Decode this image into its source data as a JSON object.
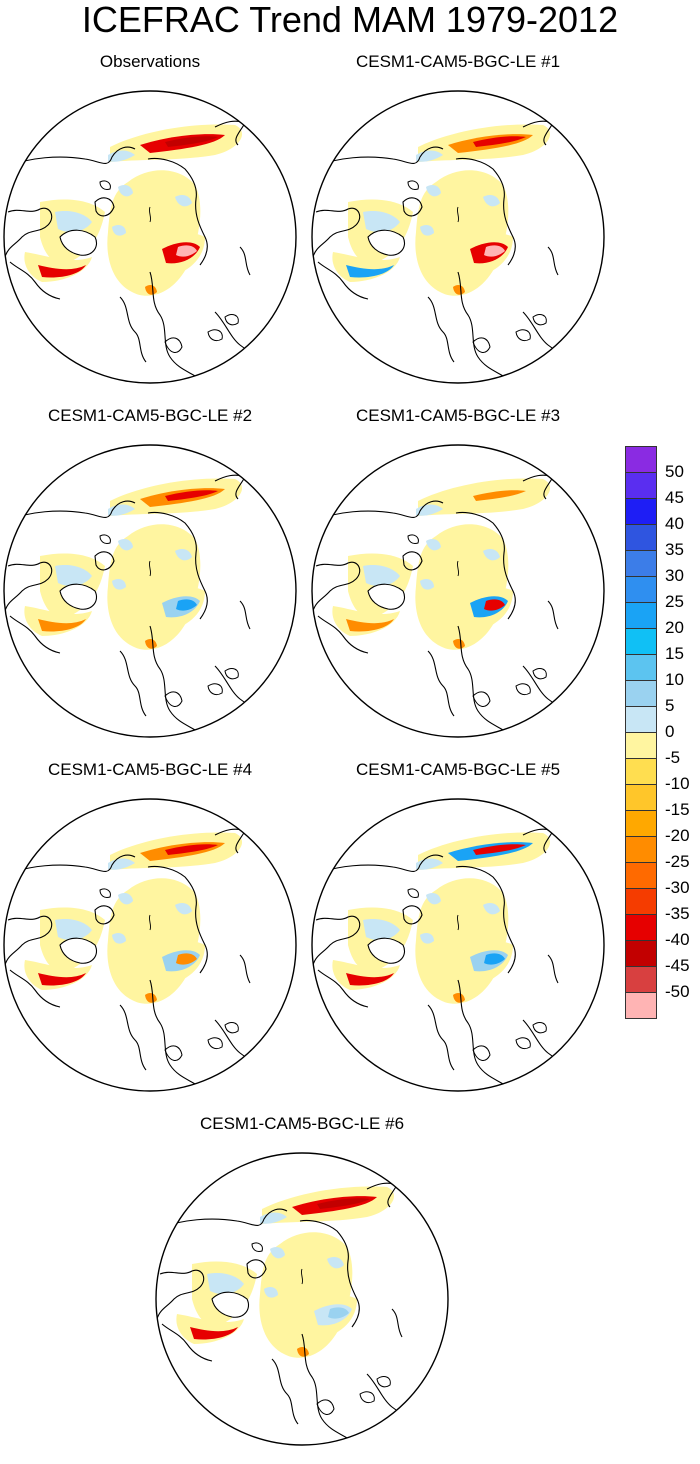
{
  "title": "ICEFRAC Trend MAM 1979-2012",
  "panels": [
    {
      "id": "observations",
      "title": "Observations"
    },
    {
      "id": "member-1",
      "title": "CESM1-CAM5-BGC-LE #1"
    },
    {
      "id": "member-2",
      "title": "CESM1-CAM5-BGC-LE #2"
    },
    {
      "id": "member-3",
      "title": "CESM1-CAM5-BGC-LE #3"
    },
    {
      "id": "member-4",
      "title": "CESM1-CAM5-BGC-LE #4"
    },
    {
      "id": "member-5",
      "title": "CESM1-CAM5-BGC-LE #5"
    },
    {
      "id": "member-6",
      "title": "CESM1-CAM5-BGC-LE #6"
    }
  ],
  "colorbar": {
    "labels": [
      "50",
      "45",
      "40",
      "35",
      "30",
      "25",
      "20",
      "15",
      "10",
      "5",
      "0",
      "-5",
      "-10",
      "-15",
      "-20",
      "-25",
      "-30",
      "-35",
      "-40",
      "-45",
      "-50"
    ],
    "colors": [
      "#8a2be2",
      "#5a2ef0",
      "#1e1ef5",
      "#2f55e0",
      "#3c7de8",
      "#2f8ff0",
      "#1aa3f5",
      "#10c0f5",
      "#5cc4f0",
      "#9ad2f0",
      "#c8e6f5",
      "#fff5a0",
      "#ffde50",
      "#ffc62a",
      "#ffa800",
      "#ff8c00",
      "#ff6a00",
      "#f53c00",
      "#e60000",
      "#c20000",
      "#d84040",
      "#ffb4b4"
    ]
  }
}
